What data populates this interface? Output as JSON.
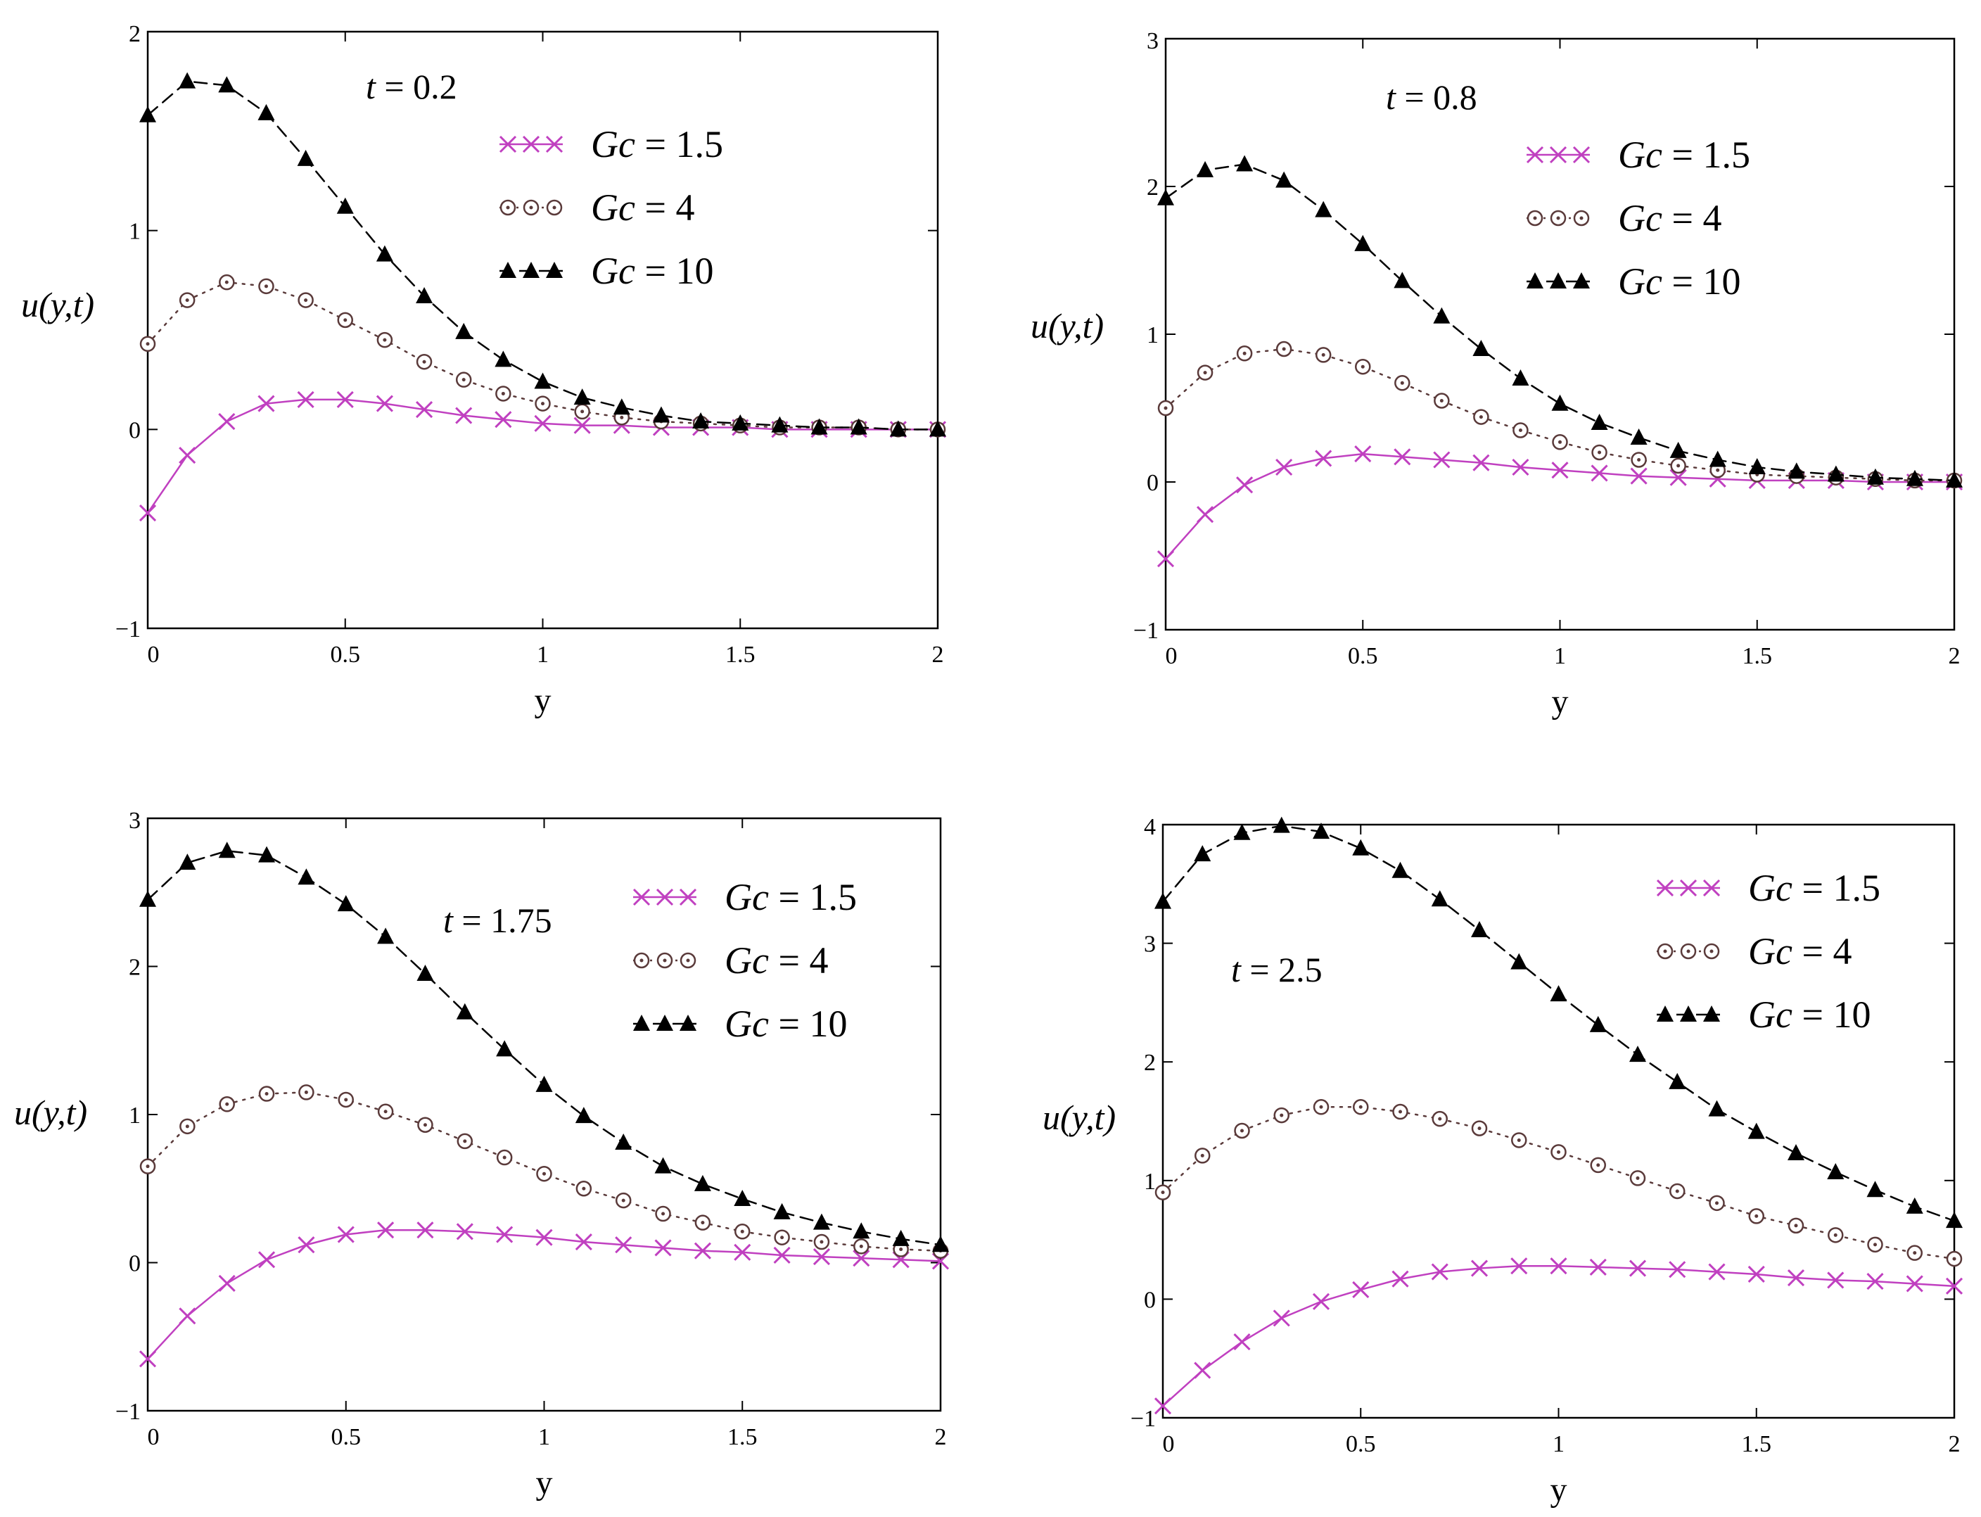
{
  "figure": {
    "legend_series": [
      {
        "name": "Gc = 1.5",
        "gc_label": "Gc",
        "gc_value": "1.5",
        "color": "#c040c0",
        "marker": "x-cross",
        "line": "solid"
      },
      {
        "name": "Gc = 4",
        "gc_label": "Gc",
        "gc_value": "4",
        "color": "#5a3a3a",
        "marker": "circle-dot",
        "line": "dotted"
      },
      {
        "name": "Gc = 10",
        "gc_label": "Gc",
        "gc_value": "10",
        "color": "#000000",
        "marker": "filled-triangle",
        "line": "dashed"
      }
    ]
  },
  "chart_data": [
    {
      "type": "line",
      "panel": "top-left",
      "title": "t = 0.2",
      "t_label": "t",
      "t_value": "0.2",
      "xlabel": "y",
      "ylabel": "u(y,t)",
      "xlim": [
        0,
        2
      ],
      "ylim": [
        -1,
        2
      ],
      "xticks": [
        "0",
        "0.5",
        "1",
        "1.5",
        "2"
      ],
      "yticks": [
        "−1",
        "0",
        "1",
        "2"
      ],
      "x": [
        0,
        0.1,
        0.2,
        0.3,
        0.4,
        0.5,
        0.6,
        0.7,
        0.8,
        0.9,
        1.0,
        1.1,
        1.2,
        1.3,
        1.4,
        1.5,
        1.6,
        1.7,
        1.8,
        1.9,
        2.0
      ],
      "series": [
        {
          "name": "Gc = 1.5",
          "values": [
            -0.42,
            -0.13,
            0.04,
            0.13,
            0.15,
            0.15,
            0.13,
            0.1,
            0.07,
            0.05,
            0.03,
            0.02,
            0.02,
            0.01,
            0.01,
            0.01,
            0.0,
            0.0,
            0.0,
            0.0,
            0.0
          ]
        },
        {
          "name": "Gc = 4",
          "values": [
            0.43,
            0.65,
            0.74,
            0.72,
            0.65,
            0.55,
            0.45,
            0.34,
            0.25,
            0.18,
            0.13,
            0.09,
            0.06,
            0.04,
            0.03,
            0.02,
            0.01,
            0.01,
            0.01,
            0.0,
            0.0
          ]
        },
        {
          "name": "Gc = 10",
          "values": [
            1.58,
            1.75,
            1.73,
            1.59,
            1.36,
            1.12,
            0.88,
            0.67,
            0.49,
            0.35,
            0.24,
            0.16,
            0.11,
            0.07,
            0.04,
            0.03,
            0.02,
            0.01,
            0.01,
            0.0,
            0.0
          ]
        }
      ],
      "legend": "top-right"
    },
    {
      "type": "line",
      "panel": "top-right",
      "title": "t = 0.8",
      "t_label": "t",
      "t_value": "0.8",
      "xlabel": "y",
      "ylabel": "u(y,t)",
      "xlim": [
        0,
        2
      ],
      "ylim": [
        -1,
        3
      ],
      "xticks": [
        "0",
        "0.5",
        "1",
        "1.5",
        "2"
      ],
      "yticks": [
        "−1",
        "0",
        "1",
        "2",
        "3"
      ],
      "x": [
        0,
        0.1,
        0.2,
        0.3,
        0.4,
        0.5,
        0.6,
        0.7,
        0.8,
        0.9,
        1.0,
        1.1,
        1.2,
        1.3,
        1.4,
        1.5,
        1.6,
        1.7,
        1.8,
        1.9,
        2.0
      ],
      "series": [
        {
          "name": "Gc = 1.5",
          "values": [
            -0.52,
            -0.22,
            -0.02,
            0.1,
            0.16,
            0.19,
            0.17,
            0.15,
            0.13,
            0.1,
            0.08,
            0.06,
            0.04,
            0.03,
            0.02,
            0.01,
            0.01,
            0.01,
            0.0,
            0.0,
            0.0
          ]
        },
        {
          "name": "Gc = 4",
          "values": [
            0.5,
            0.74,
            0.87,
            0.9,
            0.86,
            0.78,
            0.67,
            0.55,
            0.44,
            0.35,
            0.27,
            0.2,
            0.15,
            0.11,
            0.08,
            0.05,
            0.04,
            0.03,
            0.02,
            0.01,
            0.01
          ]
        },
        {
          "name": "Gc = 10",
          "values": [
            1.92,
            2.11,
            2.15,
            2.04,
            1.84,
            1.61,
            1.36,
            1.12,
            0.9,
            0.7,
            0.53,
            0.4,
            0.3,
            0.21,
            0.15,
            0.1,
            0.07,
            0.05,
            0.03,
            0.02,
            0.01
          ]
        }
      ],
      "legend": "top-right"
    },
    {
      "type": "line",
      "panel": "bottom-left",
      "title": "t = 1.75",
      "t_label": "t",
      "t_value": "1.75",
      "xlabel": "y",
      "ylabel": "u(y,t)",
      "xlim": [
        0,
        2
      ],
      "ylim": [
        -1,
        3
      ],
      "xticks": [
        "0",
        "0.5",
        "1",
        "1.5",
        "2"
      ],
      "yticks": [
        "−1",
        "0",
        "1",
        "2",
        "3"
      ],
      "x": [
        0,
        0.1,
        0.2,
        0.3,
        0.4,
        0.5,
        0.6,
        0.7,
        0.8,
        0.9,
        1.0,
        1.1,
        1.2,
        1.3,
        1.4,
        1.5,
        1.6,
        1.7,
        1.8,
        1.9,
        2.0
      ],
      "series": [
        {
          "name": "Gc = 1.5",
          "values": [
            -0.65,
            -0.36,
            -0.14,
            0.02,
            0.12,
            0.19,
            0.22,
            0.22,
            0.21,
            0.19,
            0.17,
            0.14,
            0.12,
            0.1,
            0.08,
            0.07,
            0.05,
            0.04,
            0.03,
            0.02,
            0.01
          ]
        },
        {
          "name": "Gc = 4",
          "values": [
            0.65,
            0.92,
            1.07,
            1.14,
            1.15,
            1.1,
            1.02,
            0.93,
            0.82,
            0.71,
            0.6,
            0.5,
            0.42,
            0.33,
            0.27,
            0.21,
            0.17,
            0.14,
            0.11,
            0.09,
            0.08
          ]
        },
        {
          "name": "Gc = 10",
          "values": [
            2.45,
            2.7,
            2.78,
            2.75,
            2.6,
            2.42,
            2.2,
            1.95,
            1.69,
            1.44,
            1.2,
            0.99,
            0.81,
            0.65,
            0.53,
            0.43,
            0.34,
            0.27,
            0.21,
            0.16,
            0.12
          ]
        }
      ],
      "legend": "top-right"
    },
    {
      "type": "line",
      "panel": "bottom-right",
      "title": "t = 2.5",
      "t_label": "t",
      "t_value": "2.5",
      "xlabel": "y",
      "ylabel": "u(y,t)",
      "xlim": [
        0,
        2
      ],
      "ylim": [
        -1,
        4
      ],
      "xticks": [
        "0",
        "0.5",
        "1",
        "1.5",
        "2"
      ],
      "yticks": [
        "−1",
        "0",
        "1",
        "2",
        "3",
        "4"
      ],
      "x": [
        0,
        0.1,
        0.2,
        0.3,
        0.4,
        0.5,
        0.6,
        0.7,
        0.8,
        0.9,
        1.0,
        1.1,
        1.2,
        1.3,
        1.4,
        1.5,
        1.6,
        1.7,
        1.8,
        1.9,
        2.0
      ],
      "series": [
        {
          "name": "Gc = 1.5",
          "values": [
            -0.9,
            -0.6,
            -0.36,
            -0.16,
            -0.02,
            0.08,
            0.17,
            0.23,
            0.26,
            0.28,
            0.28,
            0.27,
            0.26,
            0.25,
            0.23,
            0.21,
            0.18,
            0.16,
            0.15,
            0.13,
            0.11
          ]
        },
        {
          "name": "Gc = 4",
          "values": [
            0.9,
            1.21,
            1.42,
            1.55,
            1.62,
            1.62,
            1.58,
            1.52,
            1.44,
            1.34,
            1.24,
            1.13,
            1.02,
            0.91,
            0.81,
            0.7,
            0.62,
            0.54,
            0.46,
            0.39,
            0.34
          ]
        },
        {
          "name": "Gc = 10",
          "values": [
            3.35,
            3.75,
            3.93,
            3.99,
            3.94,
            3.8,
            3.61,
            3.37,
            3.11,
            2.84,
            2.57,
            2.31,
            2.06,
            1.83,
            1.6,
            1.41,
            1.23,
            1.07,
            0.92,
            0.78,
            0.66
          ]
        }
      ],
      "legend": "top-right"
    }
  ]
}
